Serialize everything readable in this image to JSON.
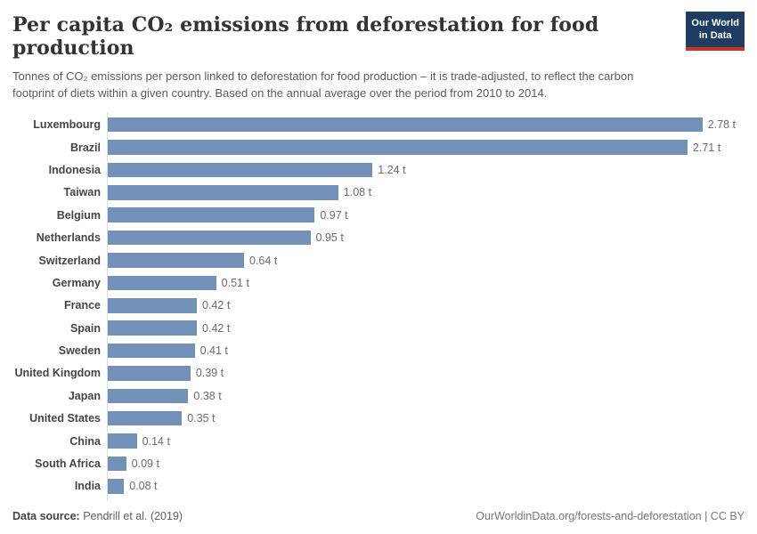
{
  "header": {
    "title": "Per capita CO₂ emissions from deforestation for food production",
    "subtitle": "Tonnes of CO₂ emissions per person linked to deforestation for food production – it is trade-adjusted, to reflect the carbon footprint of diets within a given country. Based on the annual average over the period from 2010 to 2014.",
    "logo": {
      "line1": "Our World",
      "line2": "in Data",
      "bg_color": "#1d3d63",
      "accent_color": "#cc3226"
    }
  },
  "chart_data": {
    "type": "bar",
    "orientation": "horizontal",
    "title": "Per capita CO₂ emissions from deforestation for food production",
    "unit": "t",
    "xlim": [
      0,
      2.78
    ],
    "grid": false,
    "bar_color": "#7291b8",
    "categories": [
      "Luxembourg",
      "Brazil",
      "Indonesia",
      "Taiwan",
      "Belgium",
      "Netherlands",
      "Switzerland",
      "Germany",
      "France",
      "Spain",
      "Sweden",
      "United Kingdom",
      "Japan",
      "United States",
      "China",
      "South Africa",
      "India"
    ],
    "values": [
      2.78,
      2.71,
      1.24,
      1.08,
      0.97,
      0.95,
      0.64,
      0.51,
      0.42,
      0.42,
      0.41,
      0.39,
      0.38,
      0.35,
      0.14,
      0.09,
      0.08
    ],
    "value_labels": [
      "2.78 t",
      "2.71 t",
      "1.24 t",
      "1.08 t",
      "0.97 t",
      "0.95 t",
      "0.64 t",
      "0.51 t",
      "0.42 t",
      "0.42 t",
      "0.41 t",
      "0.39 t",
      "0.38 t",
      "0.35 t",
      "0.14 t",
      "0.09 t",
      "0.08 t"
    ]
  },
  "footer": {
    "source_label": "Data source:",
    "source_value": " Pendrill et al. (2019)",
    "link": "OurWorldinData.org/forests-and-deforestation | CC BY"
  }
}
